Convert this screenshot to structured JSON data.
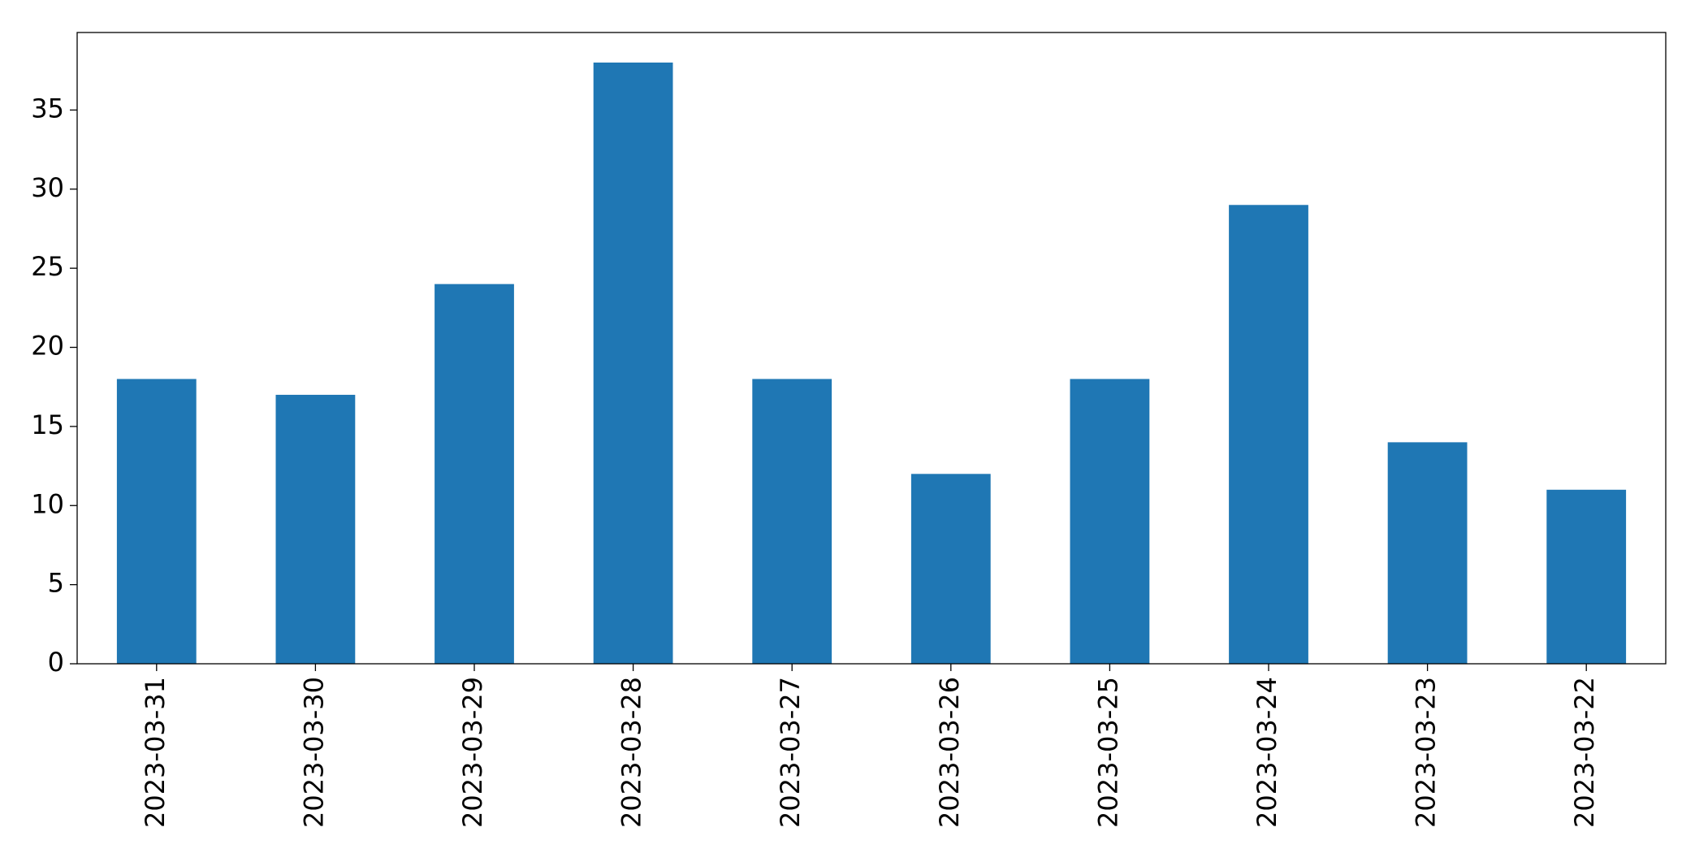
{
  "chart_data": {
    "type": "bar",
    "categories": [
      "2023-03-31",
      "2023-03-30",
      "2023-03-29",
      "2023-03-28",
      "2023-03-27",
      "2023-03-26",
      "2023-03-25",
      "2023-03-24",
      "2023-03-23",
      "2023-03-22"
    ],
    "values": [
      18,
      17,
      24,
      38,
      18,
      12,
      18,
      29,
      14,
      11
    ],
    "color": "#1f77b4",
    "ylim": [
      0,
      39.9
    ],
    "yticks": [
      0,
      5,
      10,
      15,
      20,
      25,
      30,
      35
    ],
    "grid": false
  }
}
